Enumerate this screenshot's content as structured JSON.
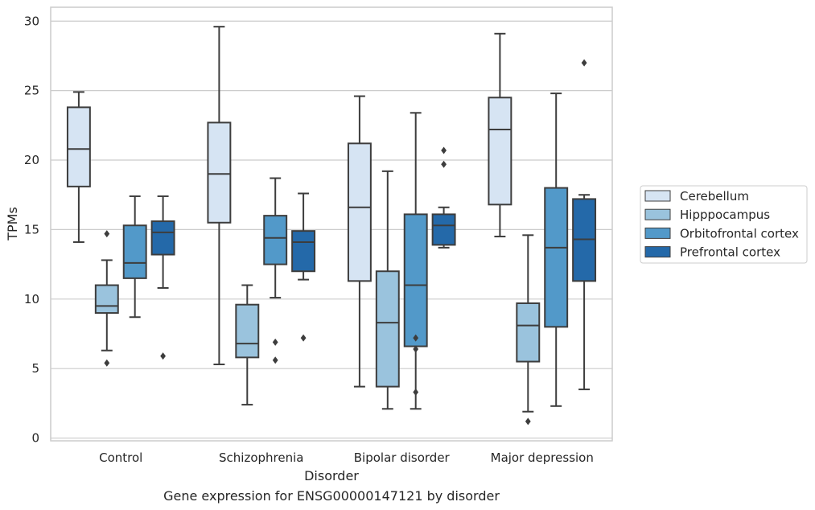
{
  "caption": "Gene expression for ENSG00000147121 by disorder",
  "chart_data": {
    "type": "boxplot",
    "xlabel": "Disorder",
    "ylabel": "TPMs",
    "ylim": [
      -0.2,
      31
    ],
    "yticks": [
      0,
      5,
      10,
      15,
      20,
      25,
      30
    ],
    "grid": "horizontal",
    "legend_position": "right",
    "categories": [
      "Control",
      "Schizophrenia",
      "Bipolar disorder",
      "Major depression"
    ],
    "series": [
      {
        "name": "Cerebellum",
        "color": "#d6e4f3",
        "boxes": [
          {
            "whislo": 14.1,
            "q1": 18.1,
            "med": 20.8,
            "q3": 23.8,
            "whishi": 24.9,
            "fliers": []
          },
          {
            "whislo": 5.3,
            "q1": 15.5,
            "med": 19.0,
            "q3": 22.7,
            "whishi": 29.6,
            "fliers": []
          },
          {
            "whislo": 3.7,
            "q1": 11.3,
            "med": 16.6,
            "q3": 21.2,
            "whishi": 24.6,
            "fliers": []
          },
          {
            "whislo": 14.5,
            "q1": 16.8,
            "med": 22.2,
            "q3": 24.5,
            "whishi": 29.1,
            "fliers": []
          }
        ]
      },
      {
        "name": "Hipppocampus",
        "color": "#9ac3dd",
        "boxes": [
          {
            "whislo": 6.3,
            "q1": 9.0,
            "med": 9.5,
            "q3": 11.0,
            "whishi": 12.8,
            "fliers": [
              14.7,
              5.4
            ]
          },
          {
            "whislo": 2.4,
            "q1": 5.8,
            "med": 6.8,
            "q3": 9.6,
            "whishi": 11.0,
            "fliers": []
          },
          {
            "whislo": 2.1,
            "q1": 3.7,
            "med": 8.3,
            "q3": 12.0,
            "whishi": 19.2,
            "fliers": []
          },
          {
            "whislo": 1.9,
            "q1": 5.5,
            "med": 8.1,
            "q3": 9.7,
            "whishi": 14.6,
            "fliers": [
              1.2
            ]
          }
        ]
      },
      {
        "name": "Orbitofrontal cortex",
        "color": "#5299c9",
        "boxes": [
          {
            "whislo": 8.7,
            "q1": 11.5,
            "med": 12.6,
            "q3": 15.3,
            "whishi": 17.4,
            "fliers": []
          },
          {
            "whislo": 10.1,
            "q1": 12.5,
            "med": 14.4,
            "q3": 16.0,
            "whishi": 18.7,
            "fliers": [
              6.9,
              5.6
            ]
          },
          {
            "whislo": 2.1,
            "q1": 6.6,
            "med": 11.0,
            "q3": 16.1,
            "whishi": 23.4,
            "fliers": [
              7.2,
              6.4,
              3.3
            ]
          },
          {
            "whislo": 2.3,
            "q1": 8.0,
            "med": 13.7,
            "q3": 18.0,
            "whishi": 24.8,
            "fliers": []
          }
        ]
      },
      {
        "name": "Prefrontal cortex",
        "color": "#2469a9",
        "boxes": [
          {
            "whislo": 10.8,
            "q1": 13.2,
            "med": 14.8,
            "q3": 15.6,
            "whishi": 17.4,
            "fliers": [
              5.9
            ]
          },
          {
            "whislo": 11.4,
            "q1": 12.0,
            "med": 14.1,
            "q3": 14.9,
            "whishi": 17.6,
            "fliers": [
              7.2
            ]
          },
          {
            "whislo": 13.7,
            "q1": 13.9,
            "med": 15.3,
            "q3": 16.1,
            "whishi": 16.6,
            "fliers": [
              20.7,
              19.7
            ]
          },
          {
            "whislo": 3.5,
            "q1": 11.3,
            "med": 14.3,
            "q3": 17.2,
            "whishi": 17.5,
            "fliers": [
              27.0
            ]
          }
        ]
      }
    ]
  }
}
